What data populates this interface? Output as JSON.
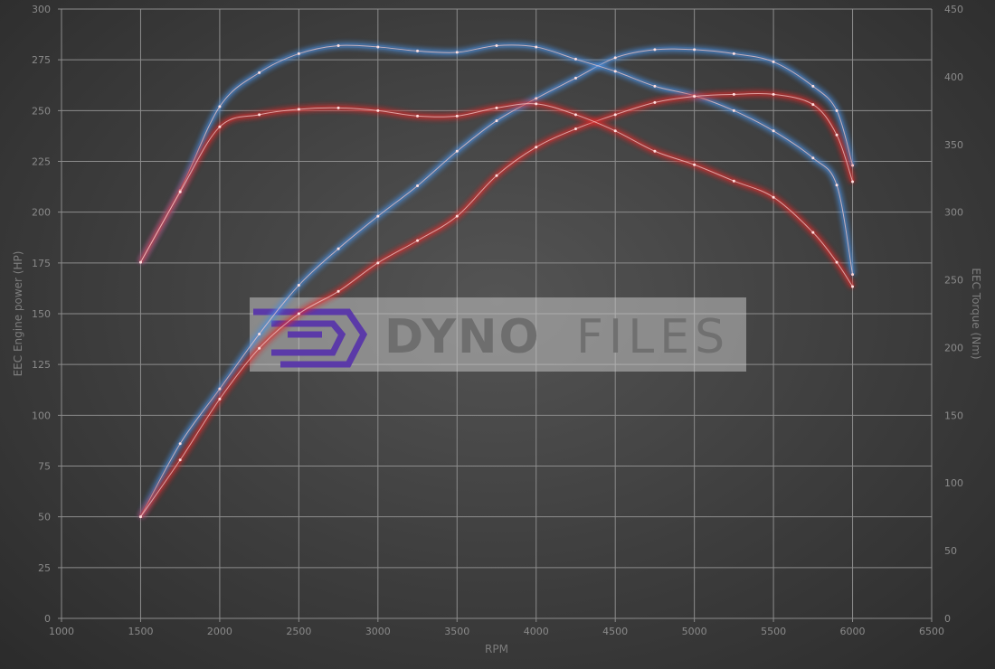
{
  "chart_data": {
    "type": "line",
    "xlabel": "RPM",
    "ylabel": "EEC Engine power (HP)",
    "y2label": "EEC Torque (Nm)",
    "xlim": [
      1000,
      6500
    ],
    "ylim": [
      0,
      300
    ],
    "y2lim": [
      0,
      450
    ],
    "xticks": [
      1000,
      1500,
      2000,
      2500,
      3000,
      3500,
      4000,
      4500,
      5000,
      5500,
      6000,
      6500
    ],
    "yticks": [
      0,
      25,
      50,
      75,
      100,
      125,
      150,
      175,
      200,
      225,
      250,
      275,
      300
    ],
    "y2ticks": [
      0,
      50,
      100,
      150,
      200,
      250,
      300,
      350,
      400,
      450
    ],
    "grid": true,
    "x": [
      1500,
      1750,
      2000,
      2250,
      2500,
      2750,
      3000,
      3250,
      3500,
      3750,
      4000,
      4250,
      4500,
      4750,
      5000,
      5250,
      5500,
      5750,
      5900,
      6000
    ],
    "series": [
      {
        "axis": "left",
        "color": "#4a90e2",
        "values": [
          50,
          86,
          113,
          140,
          164,
          182,
          198,
          213,
          230,
          245,
          256,
          266,
          276,
          280,
          280,
          278,
          274,
          262,
          250,
          223
        ]
      },
      {
        "axis": "right",
        "color": "#4a90e2",
        "values": [
          263,
          316,
          378,
          403,
          417,
          423,
          422,
          419,
          418,
          423,
          422,
          413,
          404,
          393,
          386,
          375,
          360,
          340,
          320,
          254
        ]
      },
      {
        "axis": "left",
        "color": "#e02b2b",
        "values": [
          50,
          78,
          108,
          133,
          150,
          161,
          175,
          186,
          198,
          218,
          232,
          241,
          248,
          254,
          257,
          258,
          258,
          253,
          238,
          215
        ]
      },
      {
        "axis": "right",
        "color": "#e02b2b",
        "values": [
          263,
          315,
          363,
          372,
          376,
          377,
          375,
          371,
          371,
          377,
          380,
          372,
          360,
          345,
          335,
          323,
          311,
          285,
          263,
          245
        ]
      }
    ]
  },
  "watermark": {
    "text_bold": "DYNO",
    "text_light": "FILES",
    "logo_color": "#5b3aa8"
  }
}
